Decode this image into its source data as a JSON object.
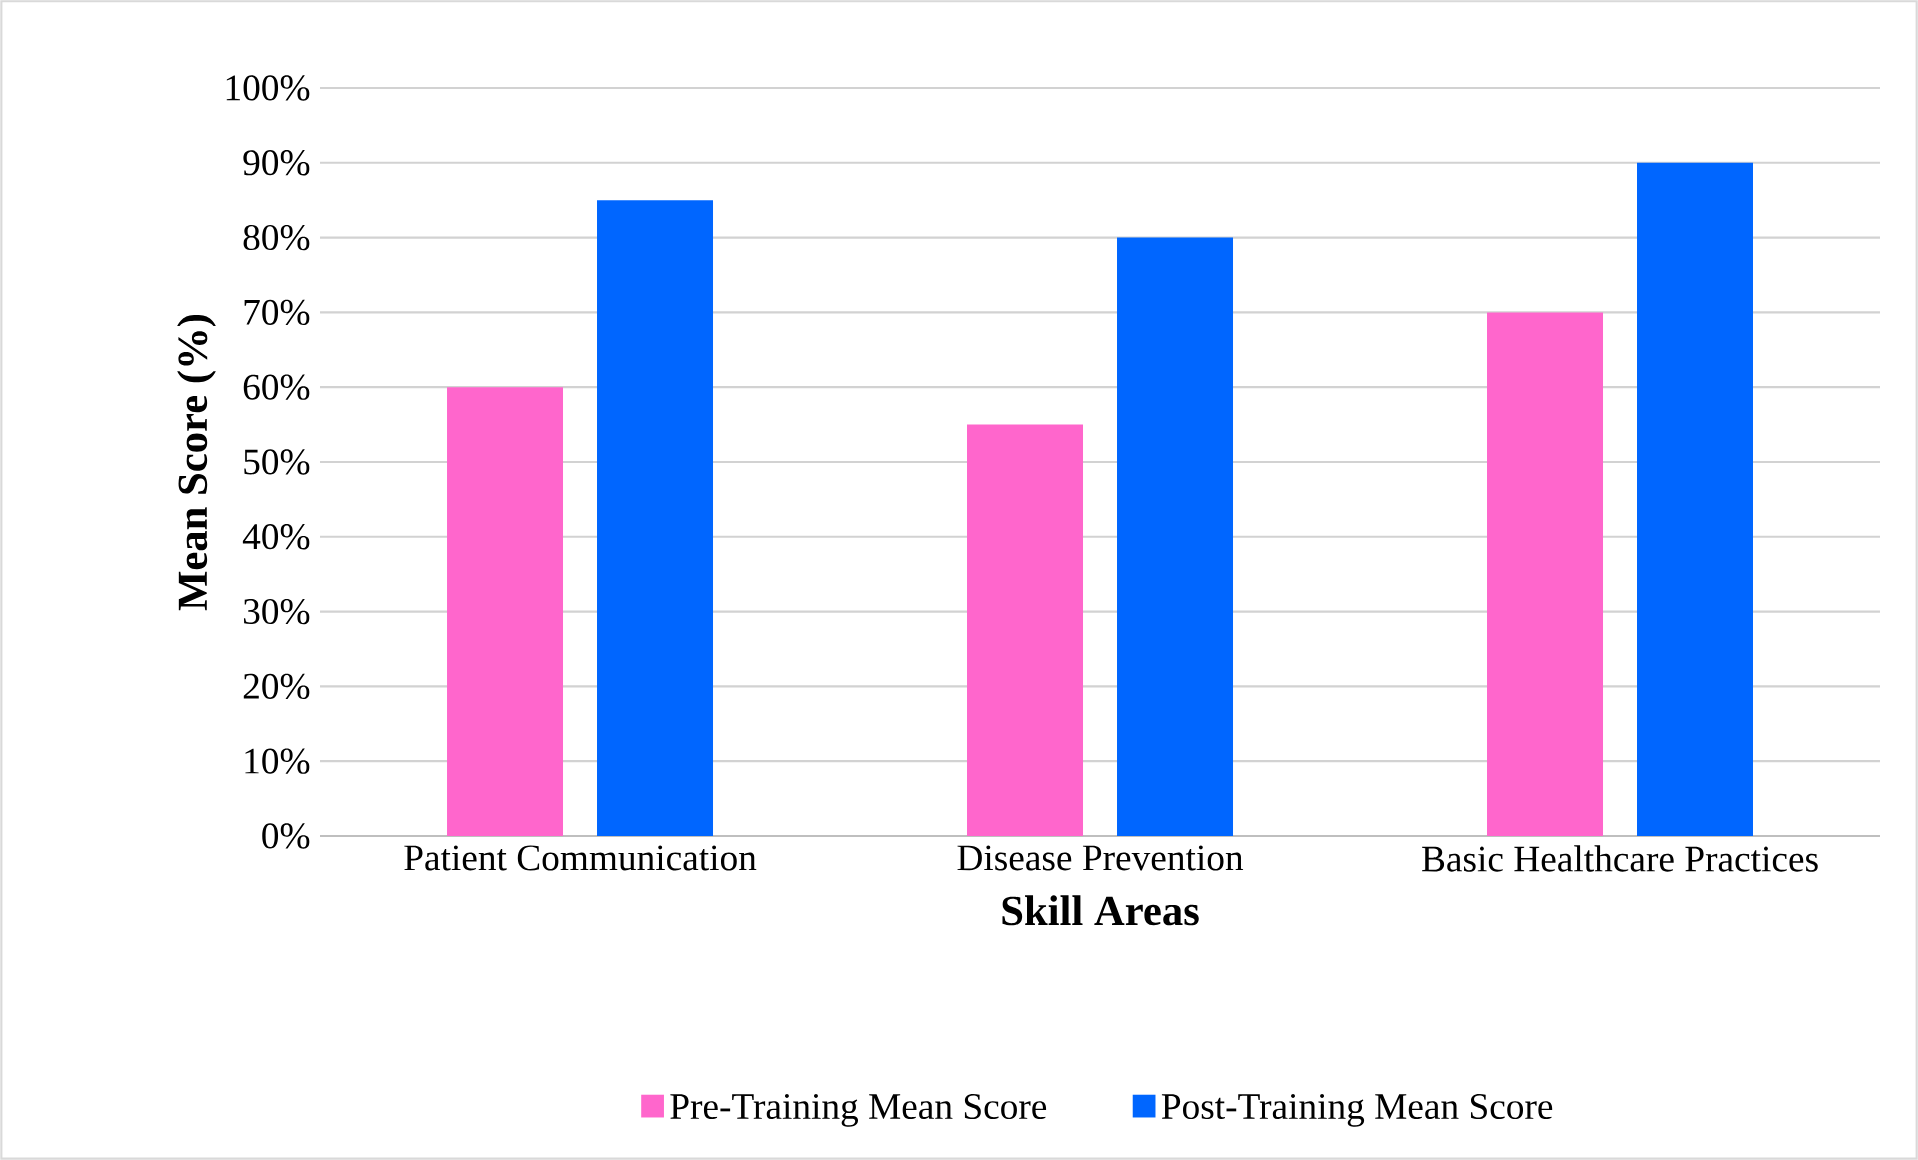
{
  "chart_data": {
    "type": "bar",
    "xlabel": "Skill Areas",
    "ylabel": "Mean Score (%)",
    "categories": [
      "Patient Communication",
      "Disease Prevention",
      "Basic Healthcare Practices"
    ],
    "series": [
      {
        "name": "Pre-Training Mean Score",
        "color": "#ff66cc",
        "values": [
          60,
          55,
          70
        ]
      },
      {
        "name": "Post-Training Mean Score",
        "color": "#0066ff",
        "values": [
          85,
          80,
          90
        ]
      }
    ],
    "ylim": [
      0,
      100
    ],
    "yticks": [
      {
        "value": 0,
        "label": "0%"
      },
      {
        "value": 10,
        "label": "10%"
      },
      {
        "value": 20,
        "label": "20%"
      },
      {
        "value": 30,
        "label": "30%"
      },
      {
        "value": 40,
        "label": "40%"
      },
      {
        "value": 50,
        "label": "50%"
      },
      {
        "value": 60,
        "label": "60%"
      },
      {
        "value": 70,
        "label": "70%"
      },
      {
        "value": 80,
        "label": "80%"
      },
      {
        "value": 90,
        "label": "90%"
      },
      {
        "value": 100,
        "label": "100%"
      }
    ],
    "grid": "y",
    "legend": "bottom"
  }
}
